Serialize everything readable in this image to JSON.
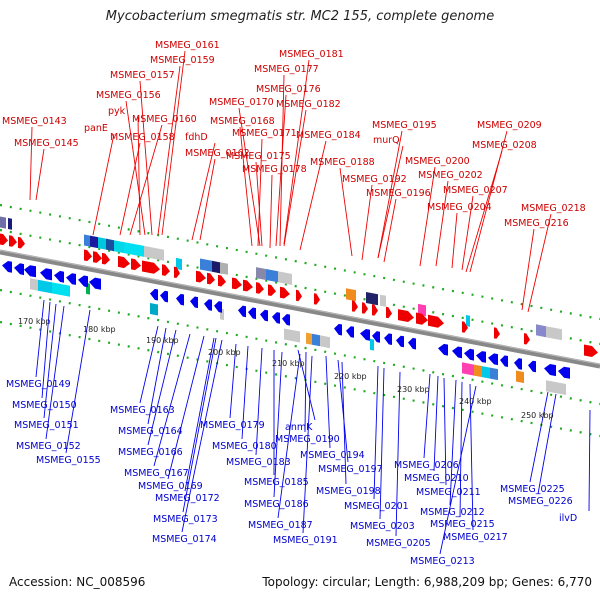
{
  "title": "Mycobacterium smegmatis str. MC2 155, complete genome",
  "footer": {
    "accession": "Accession: NC_008596",
    "summary": "Topology: circular; Length: 6,988,209 bp; Genes: 6,770"
  },
  "colors": {
    "forward": "#ee0000",
    "reverse": "#0000ee",
    "forward_label": "#cc0000",
    "reverse_label": "#0000cc",
    "backbone": "#888888",
    "dots": "#22aa22"
  },
  "ticks": [
    "170 kbp",
    "180 kbp",
    "190 kbp",
    "200 kbp",
    "210 kbp",
    "220 kbp",
    "230 kbp",
    "240 kbp",
    "250 kbp"
  ],
  "top_labels": [
    "MSMEG_0161",
    "MSMEG_0159",
    "MSMEG_0157",
    "MSMEG_0156",
    "pyk",
    "panE",
    "MSMEG_0143",
    "MSMEG_0145",
    "MSMEG_0158",
    "MSMEG_0160",
    "fdhD",
    "MSMEG_0162",
    "MSMEG_0181",
    "MSMEG_0177",
    "MSMEG_0176",
    "MSMEG_0170",
    "MSMEG_0182",
    "MSMEG_0168",
    "MSMEG_0171",
    "MSMEG_0184",
    "MSMEG_0175",
    "MSMEG_0178",
    "MSMEG_0195",
    "murQ",
    "MSMEG_0188",
    "MSMEG_0192",
    "MSMEG_0196",
    "MSMEG_0200",
    "MSMEG_0202",
    "MSMEG_0209",
    "MSMEG_0208",
    "MSMEG_0207",
    "MSMEG_0204",
    "MSMEG_0218",
    "MSMEG_0216"
  ],
  "bottom_labels": [
    "MSMEG_0149",
    "MSMEG_0150",
    "MSMEG_0151",
    "MSMEG_0152",
    "MSMEG_0155",
    "MSMEG_0163",
    "MSMEG_0164",
    "MSMEG_0166",
    "MSMEG_0167",
    "MSMEG_0169",
    "MSMEG_0172",
    "MSMEG_0173",
    "MSMEG_0174",
    "MSMEG_0179",
    "MSMEG_0180",
    "MSMEG_0183",
    "MSMEG_0185",
    "MSMEG_0186",
    "MSMEG_0187",
    "MSMEG_0191",
    "anmK",
    "MSMEG_0190",
    "MSMEG_0194",
    "MSMEG_0197",
    "MSMEG_0198",
    "MSMEG_0201",
    "MSMEG_0203",
    "MSMEG_0205",
    "MSMEG_0206",
    "MSMEG_0210",
    "MSMEG_0211",
    "MSMEG_0212",
    "MSMEG_0215",
    "MSMEG_0217",
    "MSMEG_0213",
    "MSMEG_0225",
    "MSMEG_0226",
    "ilvD"
  ]
}
